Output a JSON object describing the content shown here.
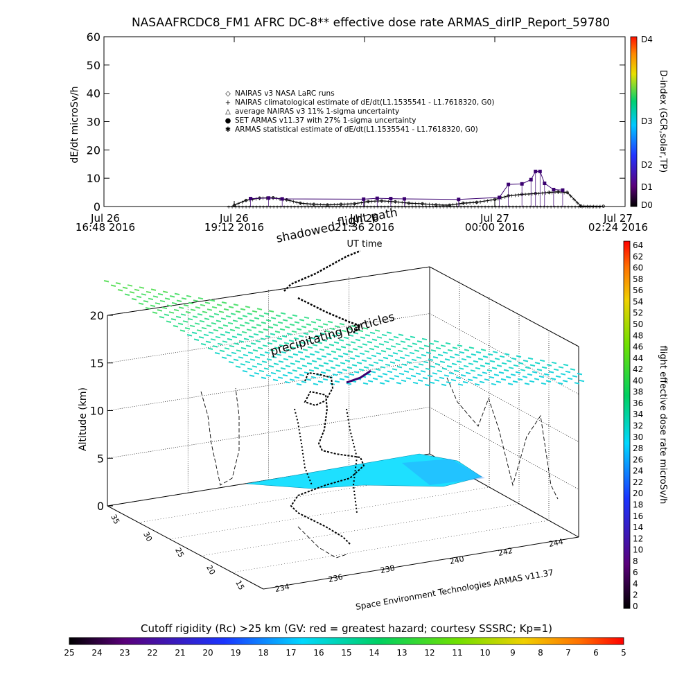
{
  "top_panel": {
    "title": "NASAAFRCDC8_FM1 AFRC DC-8** effective dose rate ARMAS_dirIP_Report_59780",
    "ylabel": "dE/dt microSv/h",
    "xlabel": "UT time",
    "yticks": [
      "0",
      "10",
      "20",
      "30",
      "40",
      "50",
      "60"
    ],
    "xticks": [
      {
        "line1": "Jul 26",
        "line2": "16:48 2016"
      },
      {
        "line1": "Jul 26",
        "line2": "19:12 2016"
      },
      {
        "line1": "Jul 26",
        "line2": "21:36 2016"
      },
      {
        "line1": "Jul 27",
        "line2": "00:00 2016"
      },
      {
        "line1": "Jul 27",
        "line2": "02:24 2016"
      }
    ],
    "legend": [
      {
        "symbol": "◇",
        "text": "NAIRAS v3 NASA LaRC runs"
      },
      {
        "symbol": "+",
        "text": "NAIRAS climatological estimate of dE/dt(L1.1535541 - L1.7618320, G0)"
      },
      {
        "symbol": "△",
        "text": "average NAIRAS v3 11% 1-sigma uncertainty"
      },
      {
        "symbol": "●",
        "text": "SET ARMAS v11.37 with 27% 1-sigma uncertainty"
      },
      {
        "symbol": "✱",
        "text": "ARMAS statistical estimate of dE/dt(L1.1535541 - L1.7618320, G0)"
      }
    ],
    "dindex": {
      "label": "D-index (GCR,solar,TP)",
      "ticks": [
        "D4",
        "D3",
        "D2",
        "D1",
        "D0"
      ]
    }
  },
  "panel3d": {
    "labels": {
      "shadowed": "shadowed",
      "flight_path": "flight path",
      "precipitating": "precipitating particles"
    },
    "zlabel": "Altitude (km)",
    "zticks": [
      "0",
      "5",
      "10",
      "15",
      "20"
    ],
    "lat_ticks": [
      "15",
      "20",
      "25",
      "30",
      "35"
    ],
    "lon_ticks": [
      "234",
      "236",
      "238",
      "240",
      "242",
      "244"
    ],
    "credit": "Space Environment Technologies ARMAS v11.37"
  },
  "colorbars": {
    "dose_rate": {
      "label": "flight effective dose rate microSv/h",
      "ticks": [
        "0",
        "2",
        "4",
        "6",
        "8",
        "10",
        "12",
        "14",
        "16",
        "18",
        "20",
        "22",
        "24",
        "26",
        "28",
        "30",
        "32",
        "34",
        "36",
        "38",
        "40",
        "42",
        "44",
        "46",
        "48",
        "50",
        "52",
        "54",
        "56",
        "58",
        "60",
        "62",
        "64"
      ]
    },
    "cutoff": {
      "label": "Cutoff rigidity (Rc) >25 km (GV: red = greatest hazard; courtesy SSSRC; Kp=1)",
      "ticks": [
        "25",
        "24",
        "23",
        "22",
        "21",
        "20",
        "19",
        "18",
        "17",
        "16",
        "15",
        "14",
        "13",
        "12",
        "11",
        "10",
        "9",
        "8",
        "7",
        "6",
        "5"
      ]
    }
  },
  "chart_data": [
    {
      "type": "scatter",
      "title": "NASAAFRCDC8_FM1 AFRC DC-8** effective dose rate ARMAS_dirIP_Report_59780",
      "xlabel": "UT time",
      "ylabel": "dE/dt microSv/h",
      "ylim": [
        0,
        60
      ],
      "xlim": [
        "2016-07-26 16:48",
        "2016-07-27 02:24"
      ],
      "series": [
        {
          "name": "NAIRAS climatological estimate of dE/dt(L1.1535541 - L1.7618320, G0)",
          "color": "#000000",
          "points": [
            [
              "2016-07-26 19:12",
              0.5
            ],
            [
              "2016-07-26 19:25",
              2.2
            ],
            [
              "2016-07-26 19:40",
              3.0
            ],
            [
              "2016-07-26 19:55",
              3.1
            ],
            [
              "2016-07-26 20:10",
              2.4
            ],
            [
              "2016-07-26 20:25",
              1.2
            ],
            [
              "2016-07-26 20:40",
              0.8
            ],
            [
              "2016-07-26 20:55",
              0.6
            ],
            [
              "2016-07-26 21:10",
              0.8
            ],
            [
              "2016-07-26 21:25",
              1.0
            ],
            [
              "2016-07-26 21:40",
              1.8
            ],
            [
              "2016-07-26 21:55",
              2.0
            ],
            [
              "2016-07-26 22:10",
              1.7
            ],
            [
              "2016-07-26 22:25",
              1.2
            ],
            [
              "2016-07-26 22:40",
              1.0
            ],
            [
              "2016-07-26 22:55",
              0.6
            ],
            [
              "2016-07-26 23:10",
              0.5
            ],
            [
              "2016-07-26 23:25",
              1.2
            ],
            [
              "2016-07-26 23:40",
              1.5
            ],
            [
              "2016-07-27 00:00",
              2.5
            ],
            [
              "2016-07-27 00:15",
              3.8
            ],
            [
              "2016-07-27 00:30",
              4.3
            ],
            [
              "2016-07-27 00:45",
              4.6
            ],
            [
              "2016-07-27 01:00",
              5.0
            ],
            [
              "2016-07-27 01:10",
              5.2
            ],
            [
              "2016-07-27 01:20",
              5.0
            ],
            [
              "2016-07-27 01:35",
              0.2
            ],
            [
              "2016-07-27 02:00",
              0.1
            ]
          ]
        },
        {
          "name": "SET ARMAS v11.37 with 27% 1-sigma uncertainty",
          "color": "#3a0070",
          "points": [
            [
              "2016-07-26 19:30",
              2.8
            ],
            [
              "2016-07-26 19:50",
              3.0
            ],
            [
              "2016-07-26 20:05",
              2.7
            ],
            [
              "2016-07-26 21:35",
              2.6
            ],
            [
              "2016-07-26 21:50",
              2.9
            ],
            [
              "2016-07-26 22:05",
              2.8
            ],
            [
              "2016-07-26 22:20",
              2.7
            ],
            [
              "2016-07-26 23:20",
              2.5
            ],
            [
              "2016-07-27 00:05",
              3.2
            ],
            [
              "2016-07-27 00:15",
              7.8
            ],
            [
              "2016-07-27 00:30",
              8.0
            ],
            [
              "2016-07-27 00:40",
              9.5
            ],
            [
              "2016-07-27 00:45",
              12.4
            ],
            [
              "2016-07-27 00:50",
              12.4
            ],
            [
              "2016-07-27 00:55",
              8.2
            ],
            [
              "2016-07-27 01:05",
              6.0
            ],
            [
              "2016-07-27 01:15",
              5.8
            ]
          ]
        }
      ]
    },
    {
      "type": "scatter",
      "xlabel": "",
      "ylabel": "Altitude (km)",
      "zlim": [
        0,
        20
      ],
      "lat_range": [
        15,
        35
      ],
      "lon_range": [
        234,
        244
      ],
      "series": [
        {
          "name": "flight path",
          "points": [
            {
              "lon": 236.7,
              "lat": 27,
              "alt": 0.2
            },
            {
              "lon": 237.3,
              "lat": 27.5,
              "alt": 2
            },
            {
              "lon": 238.0,
              "lat": 29,
              "alt": 5
            },
            {
              "lon": 238.5,
              "lat": 30,
              "alt": 8
            },
            {
              "lon": 239.2,
              "lat": 31,
              "alt": 11
            },
            {
              "lon": 239.8,
              "lat": 31.5,
              "alt": 12
            },
            {
              "lon": 240.3,
              "lat": 31,
              "alt": 11
            },
            {
              "lon": 239.5,
              "lat": 29,
              "alt": 9
            },
            {
              "lon": 238.8,
              "lat": 27,
              "alt": 7
            },
            {
              "lon": 238.2,
              "lat": 25,
              "alt": 5
            },
            {
              "lon": 237.5,
              "lat": 24,
              "alt": 3
            },
            {
              "lon": 236.9,
              "lat": 23,
              "alt": 1
            }
          ]
        }
      ]
    }
  ]
}
